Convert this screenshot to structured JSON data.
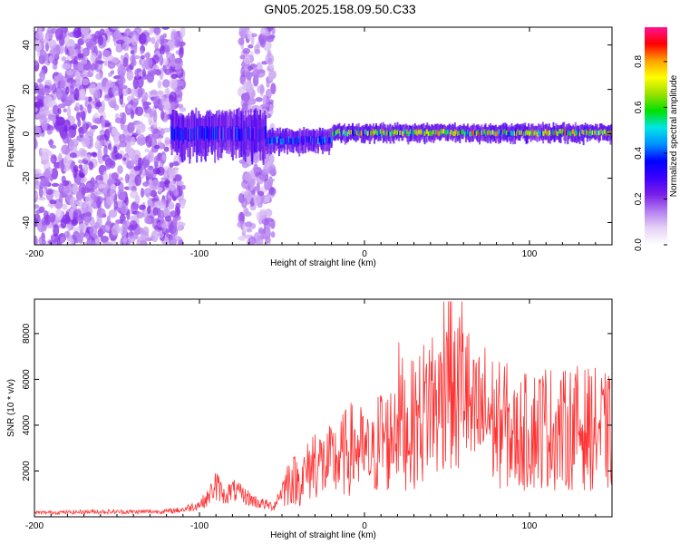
{
  "title": "GN05.2025.158.09.50.C33",
  "chart_data": [
    {
      "type": "heatmap",
      "title": "",
      "xlabel": "Height of straight line (km)",
      "ylabel": "Frequency (Hz)",
      "xlim": [
        -200,
        150
      ],
      "ylim": [
        -50,
        48
      ],
      "xticks": [
        -200,
        -100,
        0,
        100
      ],
      "yticks": [
        -40,
        -20,
        0,
        20,
        40
      ],
      "colorbar": {
        "label": "Normalized spectral amplitude",
        "range": [
          0.0,
          0.95
        ],
        "ticks": [
          0.0,
          0.2,
          0.4,
          0.6,
          0.8
        ],
        "tick_labels": [
          "0.0",
          "0.2",
          "0.4",
          "0.6",
          "0.8"
        ],
        "colormap": [
          "#ffffff",
          "#e6d2f5",
          "#b47ef0",
          "#7a1fe6",
          "#3c00ff",
          "#0000ff",
          "#0090ff",
          "#00e6e6",
          "#00e000",
          "#9be000",
          "#ffff00",
          "#ffa000",
          "#ff0000",
          "#ff1493"
        ]
      },
      "features": [
        {
          "x_range": [
            -200,
            -110
          ],
          "freq_range": [
            -50,
            48
          ],
          "amplitude": 0.12,
          "description_kind": "broadband noise"
        },
        {
          "x_range": [
            -75,
            -55
          ],
          "freq_range": [
            -50,
            48
          ],
          "amplitude": 0.1,
          "description_kind": "broadband noise"
        },
        {
          "x_range": [
            -118,
            -60
          ],
          "freq_center": 0,
          "freq_halfwidth": 8,
          "amplitude": 0.3
        },
        {
          "x_range": [
            -60,
            -20
          ],
          "freq_center": -3,
          "freq_halfwidth": 4,
          "amplitude": 0.35
        },
        {
          "x_range": [
            -20,
            150
          ],
          "freq_center": 0.5,
          "freq_halfwidth": 3,
          "amplitude": 0.6
        }
      ]
    },
    {
      "type": "line",
      "title": "",
      "xlabel": "Height of straight line (km)",
      "ylabel": "SNR (10 * v/v)",
      "xlim": [
        -200,
        150
      ],
      "ylim": [
        0,
        9500
      ],
      "xticks": [
        -200,
        -100,
        0,
        100
      ],
      "yticks": [
        2000,
        4000,
        6000,
        8000
      ],
      "color": "#ff3333",
      "series": [
        {
          "x": [
            -200,
            -180,
            -160,
            -140,
            -120,
            -110,
            -100,
            -95,
            -90,
            -85,
            -80,
            -75,
            -70,
            -65,
            -60,
            -55,
            -50,
            -45,
            -40,
            -35,
            -30,
            -25,
            -20,
            -15,
            -10,
            -5,
            0,
            5,
            10,
            15,
            20,
            25,
            30,
            35,
            40,
            45,
            50,
            55,
            60,
            65,
            70,
            75,
            80,
            85,
            90,
            95,
            100,
            105,
            110,
            115,
            120,
            125,
            130,
            135,
            140,
            145,
            150
          ],
          "values": [
            200,
            220,
            250,
            240,
            260,
            350,
            600,
            900,
            1600,
            1000,
            1300,
            1100,
            900,
            700,
            600,
            500,
            1300,
            2000,
            1800,
            2200,
            3000,
            2600,
            2800,
            3000,
            3400,
            3600,
            3200,
            3000,
            4200,
            3800,
            5500,
            4500,
            4800,
            5200,
            6200,
            5500,
            9300,
            5600,
            7600,
            4800,
            5200,
            5400,
            4600,
            4900,
            4000,
            4300,
            4400,
            4600,
            4700,
            4500,
            4400,
            4600,
            4600,
            4500,
            4500,
            4400,
            4200
          ]
        }
      ]
    }
  ]
}
